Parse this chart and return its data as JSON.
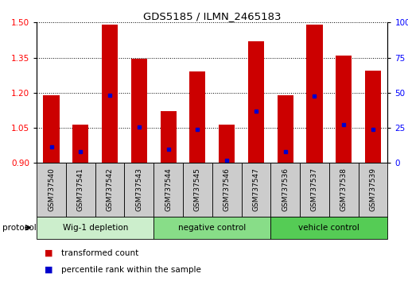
{
  "title": "GDS5185 / ILMN_2465183",
  "samples": [
    "GSM737540",
    "GSM737541",
    "GSM737542",
    "GSM737543",
    "GSM737544",
    "GSM737545",
    "GSM737546",
    "GSM737547",
    "GSM737536",
    "GSM737537",
    "GSM737538",
    "GSM737539"
  ],
  "bar_bottoms": [
    0.9,
    0.9,
    0.9,
    0.9,
    0.9,
    0.9,
    0.9,
    0.9,
    0.9,
    0.9,
    0.9,
    0.9
  ],
  "bar_tops": [
    1.19,
    1.065,
    1.49,
    1.345,
    1.12,
    1.29,
    1.065,
    1.42,
    1.19,
    1.49,
    1.36,
    1.295
  ],
  "blue_dots": [
    0.97,
    0.95,
    1.19,
    1.055,
    0.96,
    1.045,
    0.91,
    1.12,
    0.95,
    1.185,
    1.065,
    1.045
  ],
  "ylim": [
    0.9,
    1.5
  ],
  "yticks_left": [
    0.9,
    1.05,
    1.2,
    1.35,
    1.5
  ],
  "yticks_right": [
    0,
    25,
    50,
    75,
    100
  ],
  "bar_color": "#cc0000",
  "dot_color": "#0000cc",
  "groups": [
    {
      "label": "Wig-1 depletion",
      "start": 0,
      "end": 4
    },
    {
      "label": "negative control",
      "start": 4,
      "end": 8
    },
    {
      "label": "vehicle control",
      "start": 8,
      "end": 12
    }
  ],
  "group_colors": [
    "#cceecc",
    "#88dd88",
    "#55cc55"
  ],
  "sample_box_color": "#cccccc",
  "bar_color_hex": "#cc0000",
  "dot_color_hex": "#0000cc",
  "xlabel_color": "red",
  "ylabel_right_color": "blue",
  "grid_color": "black",
  "background_color": "white",
  "legend_red_label": "transformed count",
  "legend_blue_label": "percentile rank within the sample",
  "protocol_label": "protocol"
}
